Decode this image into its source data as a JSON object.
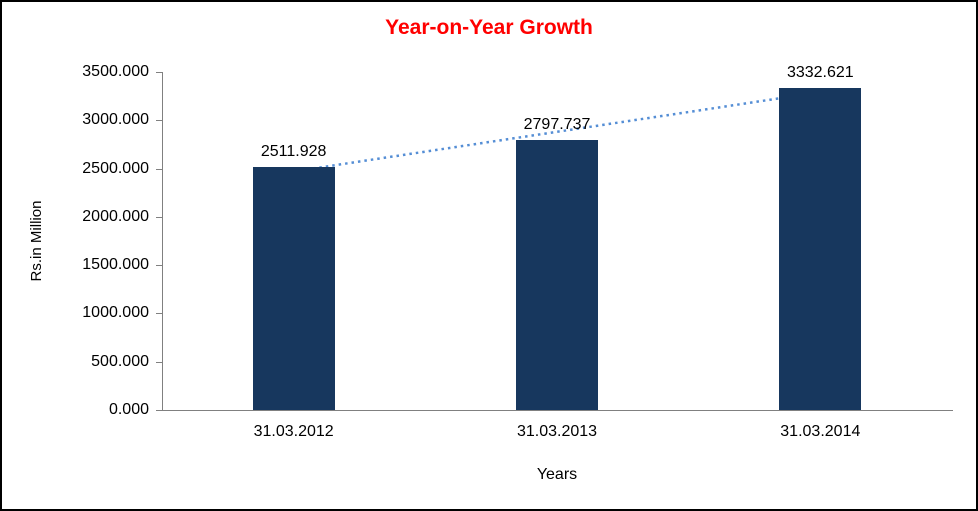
{
  "chart_data": {
    "type": "bar",
    "title": "Year-on-Year Growth",
    "title_color": "#FF0000",
    "categories": [
      "31.03.2012",
      "31.03.2013",
      "31.03.2014"
    ],
    "values": [
      2511.928,
      2797.737,
      3332.621
    ],
    "data_labels": [
      "2511.928",
      "2797.737",
      "3332.621"
    ],
    "xlabel": "Years",
    "ylabel": "Rs.in Million",
    "ylim": [
      0,
      3500
    ],
    "ytick_step": 500,
    "ytick_labels": [
      "0.000",
      "500.000",
      "1000.000",
      "1500.000",
      "2000.000",
      "2500.000",
      "3000.000",
      "3500.000"
    ],
    "grid": false,
    "legend": "none",
    "bar_color": "#17375E",
    "trendline": {
      "present": true,
      "style": "dotted",
      "color": "#558ED5"
    }
  }
}
